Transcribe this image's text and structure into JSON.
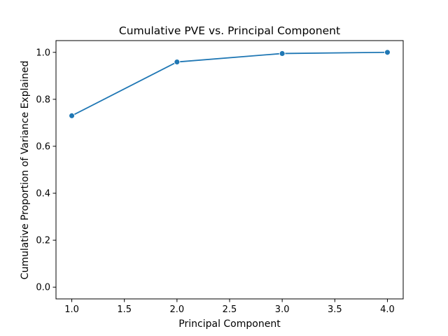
{
  "chart_data": {
    "type": "line",
    "title": "Cumulative PVE vs. Principal Component",
    "xlabel": "Principal Component",
    "ylabel": "Cumulative Proportion of Variance Explained",
    "x": [
      1.0,
      2.0,
      3.0,
      4.0
    ],
    "series": [
      {
        "values": [
          0.73,
          0.959,
          0.995,
          1.0
        ],
        "color": "#1f77b4",
        "marker": "circle"
      }
    ],
    "xlim": [
      0.85,
      4.15
    ],
    "ylim": [
      -0.05,
      1.05
    ],
    "xticks": [
      1.0,
      1.5,
      2.0,
      2.5,
      3.0,
      3.5,
      4.0
    ],
    "xtick_labels": [
      "1.0",
      "1.5",
      "2.0",
      "2.5",
      "3.0",
      "3.5",
      "4.0"
    ],
    "yticks": [
      0.0,
      0.2,
      0.4,
      0.6,
      0.8,
      1.0
    ],
    "ytick_labels": [
      "0.0",
      "0.2",
      "0.4",
      "0.6",
      "0.8",
      "1.0"
    ],
    "grid": false,
    "legend": false
  }
}
